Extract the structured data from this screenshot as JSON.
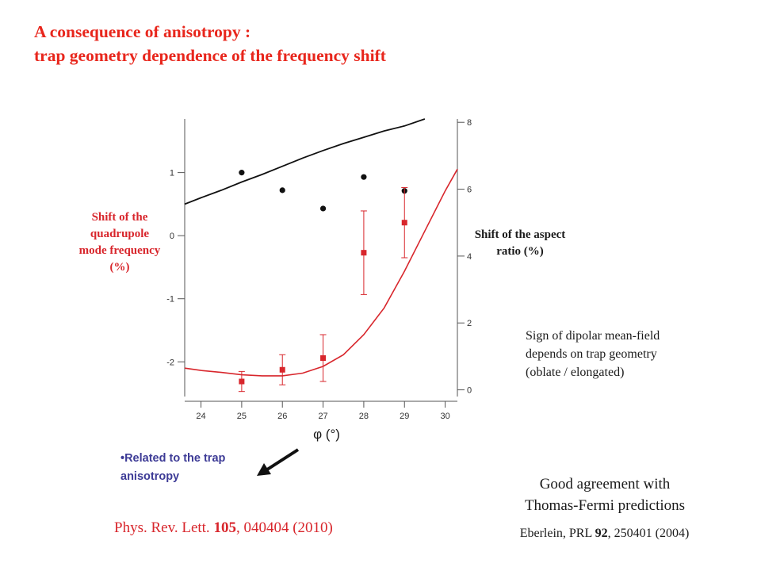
{
  "title": {
    "line1": "A consequence of anisotropy :",
    "line2": "trap geometry dependence of the frequency shift"
  },
  "left_axis_label": "Shift of the quadrupole mode frequency (%)",
  "right_axis_label": "Shift of the aspect ratio (%)",
  "sign_note": "Sign of dipolar mean-field depends on trap geometry (oblate / elongated)",
  "bullet": "Related to the trap anisotropy",
  "agreement": {
    "line1": "Good agreement with",
    "line2": "Thomas-Fermi predictions"
  },
  "eberlein": {
    "prefix": "Eberlein, PRL ",
    "volume": "92",
    "suffix": ", 250401 (2004)"
  },
  "citation": {
    "prefix": "Phys. Rev. Lett. ",
    "volume": "105",
    "suffix": ", 040404 (2010)"
  },
  "colors": {
    "title": "#e8261c",
    "left_axis_series": "#d8262c",
    "right_axis_series": "#111111",
    "bullet": "#3d3b96"
  },
  "chart_data": {
    "type": "scatter",
    "xlabel": "φ (°)",
    "x_ticks": [
      24,
      25,
      26,
      27,
      28,
      29,
      30
    ],
    "xlim": [
      23.6,
      30.3
    ],
    "left_axis": {
      "ticks": [
        1,
        0,
        -1,
        -2
      ],
      "ylim": [
        -2.55,
        1.85
      ]
    },
    "right_axis": {
      "ticks": [
        8,
        6,
        4,
        2,
        0
      ],
      "ylim": [
        -0.2,
        8.1
      ]
    },
    "series": [
      {
        "axis": "left",
        "kind": "points",
        "marker": "circle",
        "color": "#111111",
        "x": [
          25,
          26,
          27,
          28,
          29
        ],
        "y": [
          1.0,
          0.72,
          0.43,
          0.93,
          0.71
        ]
      },
      {
        "axis": "left",
        "kind": "line",
        "color": "#111111",
        "x": [
          23.6,
          24.0,
          24.5,
          25.0,
          25.5,
          26.0,
          26.5,
          27.0,
          27.5,
          28.0,
          28.5,
          29.0,
          29.5
        ],
        "y": [
          0.5,
          0.6,
          0.72,
          0.85,
          0.97,
          1.1,
          1.23,
          1.35,
          1.46,
          1.56,
          1.66,
          1.74,
          1.85
        ]
      },
      {
        "axis": "right",
        "kind": "points_errorbars",
        "marker": "square",
        "color": "#d8262c",
        "x": [
          25,
          26,
          27,
          28,
          29
        ],
        "y": [
          0.25,
          0.6,
          0.95,
          4.1,
          5.0
        ],
        "err": [
          0.3,
          0.45,
          0.7,
          1.25,
          1.05
        ]
      },
      {
        "axis": "right",
        "kind": "line",
        "color": "#d8262c",
        "x": [
          23.6,
          24.0,
          24.5,
          25.0,
          25.5,
          26.0,
          26.5,
          27.0,
          27.5,
          28.0,
          28.5,
          29.0,
          29.5,
          30.0,
          30.3
        ],
        "y": [
          0.65,
          0.58,
          0.52,
          0.45,
          0.42,
          0.42,
          0.5,
          0.7,
          1.05,
          1.65,
          2.45,
          3.55,
          4.75,
          5.95,
          6.6
        ]
      }
    ]
  }
}
